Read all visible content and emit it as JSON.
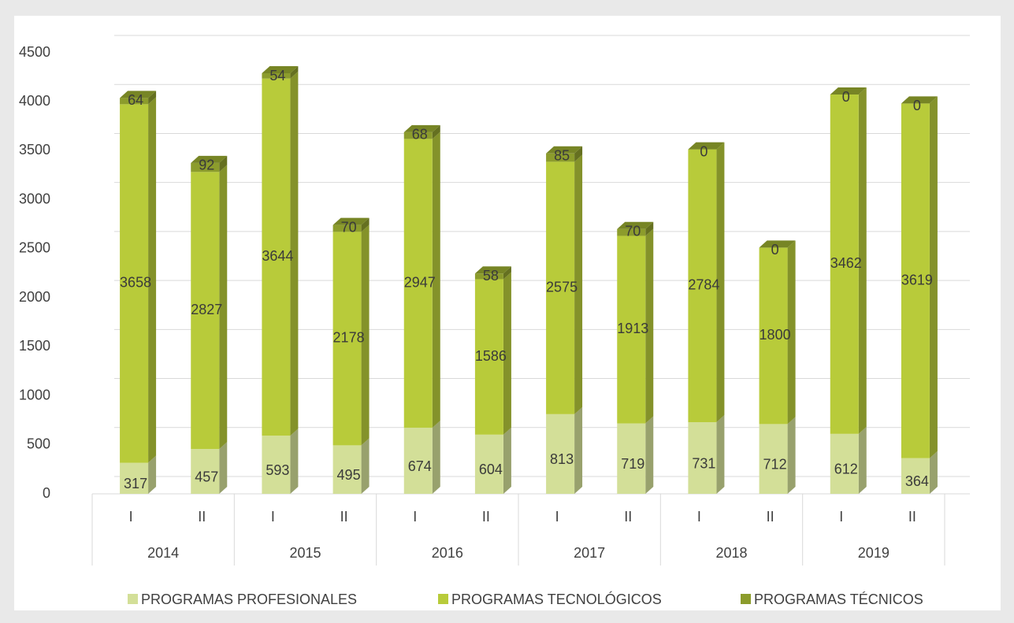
{
  "chart_data": {
    "type": "stacked_bar",
    "categories": [
      "I",
      "II",
      "I",
      "II",
      "I",
      "II",
      "I",
      "II",
      "I",
      "II",
      "I",
      "II"
    ],
    "groups": [
      "2014",
      "2015",
      "2016",
      "2017",
      "2018",
      "2019"
    ],
    "series": [
      {
        "name": "PROGRAMAS PROFESIONALES",
        "color": "#d3df98",
        "values": [
          317,
          457,
          593,
          495,
          674,
          604,
          813,
          719,
          731,
          712,
          612,
          364
        ]
      },
      {
        "name": "PROGRAMAS TECNOLÓGICOS",
        "color": "#b8cb3a",
        "values": [
          3658,
          2827,
          3644,
          2178,
          2947,
          1586,
          2575,
          1913,
          2784,
          1800,
          3462,
          3619
        ]
      },
      {
        "name": "PROGRAMAS TÉCNICOS",
        "color": "#8c9c2c",
        "values": [
          64,
          92,
          54,
          70,
          68,
          58,
          85,
          70,
          0,
          0,
          0,
          0
        ]
      }
    ],
    "ylim": [
      0,
      4500
    ],
    "yticks": [
      0,
      500,
      1000,
      1500,
      2000,
      2500,
      3000,
      3500,
      4000,
      4500
    ],
    "grid": true,
    "legend": "bottom"
  }
}
